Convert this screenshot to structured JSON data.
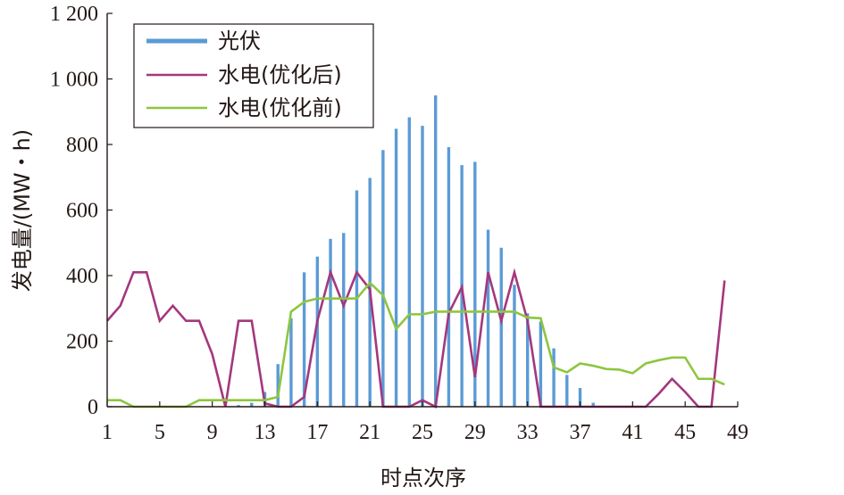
{
  "chart_data": {
    "type": "bar",
    "xlabel": "时点次序",
    "ylabel": "发电量/(MW・h)",
    "xlim": [
      1,
      49
    ],
    "ylim": [
      0,
      1200
    ],
    "xticks": [
      1,
      5,
      9,
      13,
      17,
      21,
      25,
      29,
      33,
      37,
      41,
      45,
      49
    ],
    "xtick_labels": [
      "1",
      "5",
      "9",
      "13",
      "17",
      "21",
      "25",
      "29",
      "33",
      "37",
      "41",
      "45",
      "49"
    ],
    "yticks": [
      0,
      200,
      400,
      600,
      800,
      1000,
      1200
    ],
    "ytick_labels": [
      "0",
      "200",
      "400",
      "600",
      "800",
      "1 000",
      "1 200"
    ],
    "legend_position": "top-left",
    "series": [
      {
        "name": "光伏",
        "type": "bar",
        "color": "#5b9bd5",
        "x": [
          11,
          12,
          13,
          14,
          15,
          16,
          17,
          18,
          19,
          20,
          21,
          22,
          23,
          24,
          25,
          26,
          27,
          28,
          29,
          30,
          31,
          32,
          33,
          34,
          35,
          36,
          37,
          38
        ],
        "values": [
          5,
          12,
          45,
          130,
          270,
          410,
          458,
          512,
          530,
          660,
          698,
          783,
          848,
          883,
          857,
          950,
          792,
          737,
          747,
          540,
          485,
          372,
          285,
          260,
          178,
          97,
          57,
          12
        ]
      },
      {
        "name": "水电(优化后)",
        "type": "line",
        "color": "#a4377e",
        "x": [
          1,
          2,
          3,
          4,
          5,
          6,
          7,
          8,
          9,
          10,
          11,
          12,
          13,
          14,
          15,
          16,
          17,
          18,
          19,
          20,
          21,
          22,
          23,
          24,
          25,
          26,
          27,
          28,
          29,
          30,
          31,
          32,
          33,
          34,
          35,
          36,
          37,
          38,
          39,
          40,
          41,
          42,
          43,
          44,
          45,
          46,
          47,
          48
        ],
        "values": [
          262,
          308,
          410,
          410,
          262,
          308,
          262,
          262,
          160,
          0,
          262,
          262,
          10,
          0,
          0,
          30,
          262,
          410,
          308,
          410,
          358,
          0,
          0,
          0,
          20,
          0,
          285,
          365,
          90,
          410,
          262,
          410,
          262,
          0,
          0,
          0,
          0,
          0,
          0,
          0,
          0,
          0,
          40,
          85,
          45,
          0,
          0,
          385
        ]
      },
      {
        "name": "水电(优化前)",
        "type": "line",
        "color": "#8dc63f",
        "x": [
          1,
          2,
          3,
          4,
          5,
          6,
          7,
          8,
          9,
          10,
          11,
          12,
          13,
          14,
          15,
          16,
          17,
          18,
          19,
          20,
          21,
          22,
          23,
          24,
          25,
          26,
          27,
          28,
          29,
          30,
          31,
          32,
          33,
          34,
          35,
          36,
          37,
          38,
          39,
          40,
          41,
          42,
          43,
          44,
          45,
          46,
          47,
          48
        ],
        "values": [
          20,
          20,
          0,
          0,
          0,
          0,
          0,
          20,
          20,
          20,
          20,
          20,
          20,
          30,
          290,
          320,
          330,
          330,
          330,
          330,
          378,
          340,
          237,
          282,
          282,
          290,
          290,
          290,
          290,
          290,
          290,
          290,
          272,
          270,
          120,
          105,
          132,
          125,
          115,
          113,
          102,
          132,
          142,
          150,
          150,
          85,
          85,
          68
        ]
      }
    ]
  }
}
